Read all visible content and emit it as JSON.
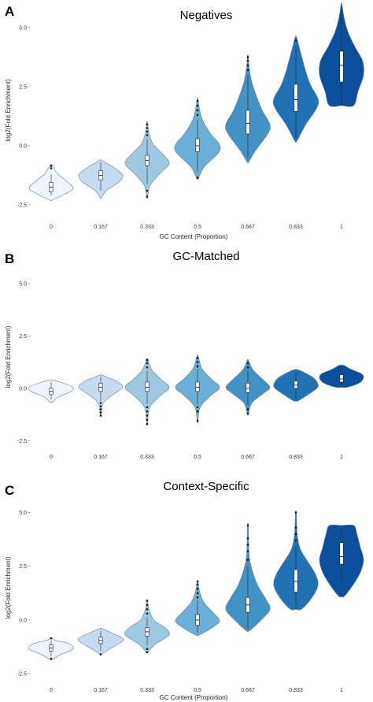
{
  "chart_data": [
    {
      "type": "violin",
      "panel_letter": "A",
      "title": "Negatives",
      "xlabel": "GC Content (Proportion)",
      "ylabel": "log2(Fold Enrichment)",
      "ylim": [
        -2.9,
        5.9
      ],
      "yticks": [
        "-2.5",
        "0.0",
        "2.5",
        "5.0"
      ],
      "ytick_values": [
        -2.5,
        0,
        2.5,
        5
      ],
      "categories": [
        "0",
        "0.167",
        "0.333",
        "0.5",
        "0.667",
        "0.833",
        "1"
      ],
      "colors": [
        "#eef4fc",
        "#c6dbef",
        "#9ecae1",
        "#6baed6",
        "#4292c6",
        "#2171b5",
        "#0b4f9c"
      ],
      "violins": [
        {
          "min": -2.3,
          "max": -0.8,
          "q1": -1.95,
          "median": -1.75,
          "q3": -1.55,
          "wmin": -2.1,
          "wmax": -1.2,
          "outliers": [
            -0.85,
            -0.95
          ],
          "profile": [
            [
              -2.3,
              0.05
            ],
            [
              -2.05,
              0.6
            ],
            [
              -1.8,
              1.0
            ],
            [
              -1.5,
              0.7
            ],
            [
              -1.2,
              0.3
            ],
            [
              -0.9,
              0.1
            ],
            [
              -0.8,
              0.03
            ]
          ]
        },
        {
          "min": -2.2,
          "max": -0.6,
          "q1": -1.45,
          "median": -1.25,
          "q3": -1.05,
          "wmin": -1.9,
          "wmax": -0.7,
          "outliers": [],
          "profile": [
            [
              -2.2,
              0.03
            ],
            [
              -1.9,
              0.25
            ],
            [
              -1.55,
              0.8
            ],
            [
              -1.25,
              1.0
            ],
            [
              -0.95,
              0.65
            ],
            [
              -0.7,
              0.2
            ],
            [
              -0.6,
              0.03
            ]
          ]
        },
        {
          "min": -2.2,
          "max": 1.0,
          "q1": -0.85,
          "median": -0.62,
          "q3": -0.4,
          "wmin": -1.6,
          "wmax": 0.3,
          "outliers": [
            0.45,
            0.6,
            0.75,
            0.9,
            -1.9,
            -2.15
          ],
          "profile": [
            [
              -2.2,
              0.02
            ],
            [
              -1.7,
              0.12
            ],
            [
              -1.2,
              0.55
            ],
            [
              -0.75,
              1.0
            ],
            [
              -0.35,
              0.7
            ],
            [
              0.1,
              0.25
            ],
            [
              0.6,
              0.07
            ],
            [
              1.0,
              0.02
            ]
          ]
        },
        {
          "min": -1.4,
          "max": 2.0,
          "q1": -0.25,
          "median": 0.0,
          "q3": 0.3,
          "wmin": -1.1,
          "wmax": 1.1,
          "outliers": [
            1.3,
            1.5,
            1.7,
            1.9,
            -1.35
          ],
          "profile": [
            [
              -1.4,
              0.03
            ],
            [
              -0.9,
              0.3
            ],
            [
              -0.3,
              0.95
            ],
            [
              0.05,
              1.0
            ],
            [
              0.5,
              0.6
            ],
            [
              1.1,
              0.22
            ],
            [
              1.6,
              0.08
            ],
            [
              2.0,
              0.02
            ]
          ]
        },
        {
          "min": -0.7,
          "max": 3.8,
          "q1": 0.5,
          "median": 0.95,
          "q3": 1.5,
          "wmin": -0.5,
          "wmax": 3.0,
          "outliers": [
            3.2,
            3.4,
            3.6,
            3.75
          ],
          "profile": [
            [
              -0.7,
              0.03
            ],
            [
              -0.2,
              0.35
            ],
            [
              0.5,
              0.9
            ],
            [
              0.9,
              1.0
            ],
            [
              1.5,
              0.65
            ],
            [
              2.2,
              0.35
            ],
            [
              2.8,
              0.15
            ],
            [
              3.4,
              0.05
            ],
            [
              3.8,
              0.02
            ]
          ]
        },
        {
          "min": 0.2,
          "max": 4.6,
          "q1": 1.45,
          "median": 1.95,
          "q3": 2.6,
          "wmin": 0.3,
          "wmax": 4.2,
          "outliers": [
            4.45
          ],
          "profile": [
            [
              0.2,
              0.05
            ],
            [
              0.9,
              0.45
            ],
            [
              1.6,
              0.95
            ],
            [
              2.0,
              1.0
            ],
            [
              2.6,
              0.65
            ],
            [
              3.3,
              0.4
            ],
            [
              4.0,
              0.2
            ],
            [
              4.6,
              0.03
            ]
          ]
        },
        {
          "min": 1.7,
          "max": 6.0,
          "q1": 2.7,
          "median": 3.4,
          "q3": 4.0,
          "wmin": 1.7,
          "wmax": 5.6,
          "outliers": [],
          "profile": [
            [
              1.7,
              0.55
            ],
            [
              2.3,
              0.75
            ],
            [
              3.0,
              1.0
            ],
            [
              3.6,
              0.95
            ],
            [
              4.2,
              0.6
            ],
            [
              4.8,
              0.3
            ],
            [
              5.4,
              0.12
            ],
            [
              6.0,
              0.02
            ]
          ]
        }
      ]
    },
    {
      "type": "violin",
      "panel_letter": "B",
      "title": "GC-Matched",
      "xlabel": "",
      "ylabel": "log2(Fold Enrichment)",
      "ylim": [
        -2.9,
        5.9
      ],
      "yticks": [
        "-2.5",
        "0.0",
        "2.5",
        "5.0"
      ],
      "ytick_values": [
        -2.5,
        0,
        2.5,
        5
      ],
      "categories": [
        "0",
        "0.167",
        "0.333",
        "0.5",
        "0.667",
        "0.833",
        "1"
      ],
      "colors": [
        "#eef4fc",
        "#c6dbef",
        "#9ecae1",
        "#6baed6",
        "#4292c6",
        "#2171b5",
        "#0b4f9c"
      ],
      "violins": [
        {
          "min": -0.65,
          "max": 0.4,
          "q1": -0.3,
          "median": -0.15,
          "q3": 0.0,
          "wmin": -0.55,
          "wmax": 0.3,
          "outliers": [],
          "profile": [
            [
              -0.65,
              0.05
            ],
            [
              -0.4,
              0.35
            ],
            [
              -0.15,
              0.9
            ],
            [
              0.05,
              1.0
            ],
            [
              0.25,
              0.55
            ],
            [
              0.4,
              0.05
            ]
          ]
        },
        {
          "min": -1.3,
          "max": 0.65,
          "q1": -0.15,
          "median": 0.05,
          "q3": 0.25,
          "wmin": -0.6,
          "wmax": 0.55,
          "outliers": [
            -0.7,
            -0.85,
            -1.0,
            -1.15,
            -1.3
          ],
          "profile": [
            [
              -1.3,
              0.02
            ],
            [
              -0.7,
              0.12
            ],
            [
              -0.3,
              0.55
            ],
            [
              0.05,
              1.0
            ],
            [
              0.35,
              0.7
            ],
            [
              0.55,
              0.25
            ],
            [
              0.65,
              0.03
            ]
          ]
        },
        {
          "min": -1.7,
          "max": 1.4,
          "q1": -0.15,
          "median": 0.05,
          "q3": 0.3,
          "wmin": -0.75,
          "wmax": 0.85,
          "outliers": [
            -0.9,
            -1.1,
            -1.3,
            -1.5,
            -1.7,
            1.0,
            1.2,
            1.35
          ],
          "profile": [
            [
              -1.7,
              0.02
            ],
            [
              -0.9,
              0.12
            ],
            [
              -0.35,
              0.6
            ],
            [
              0.05,
              1.0
            ],
            [
              0.45,
              0.6
            ],
            [
              0.9,
              0.2
            ],
            [
              1.4,
              0.03
            ]
          ]
        },
        {
          "min": -1.6,
          "max": 1.55,
          "q1": -0.15,
          "median": 0.05,
          "q3": 0.3,
          "wmin": -0.75,
          "wmax": 0.9,
          "outliers": [
            -0.9,
            -1.1,
            -1.55,
            1.05,
            1.25,
            1.45
          ],
          "profile": [
            [
              -1.6,
              0.02
            ],
            [
              -0.9,
              0.12
            ],
            [
              -0.35,
              0.6
            ],
            [
              0.05,
              1.0
            ],
            [
              0.45,
              0.62
            ],
            [
              0.95,
              0.2
            ],
            [
              1.55,
              0.03
            ]
          ]
        },
        {
          "min": -1.25,
          "max": 1.35,
          "q1": -0.2,
          "median": 0.0,
          "q3": 0.25,
          "wmin": -0.8,
          "wmax": 0.85,
          "outliers": [
            -1.0,
            -1.2,
            1.0,
            1.2
          ],
          "profile": [
            [
              -1.25,
              0.02
            ],
            [
              -0.7,
              0.18
            ],
            [
              -0.25,
              0.7
            ],
            [
              0.05,
              1.0
            ],
            [
              0.4,
              0.7
            ],
            [
              0.9,
              0.22
            ],
            [
              1.35,
              0.03
            ]
          ]
        },
        {
          "min": -0.6,
          "max": 0.9,
          "q1": 0.0,
          "median": 0.15,
          "q3": 0.35,
          "wmin": -0.5,
          "wmax": 0.8,
          "outliers": [],
          "profile": [
            [
              -0.6,
              0.1
            ],
            [
              -0.3,
              0.55
            ],
            [
              0.0,
              0.95
            ],
            [
              0.2,
              1.0
            ],
            [
              0.5,
              0.8
            ],
            [
              0.8,
              0.3
            ],
            [
              0.9,
              0.05
            ]
          ]
        },
        {
          "min": 0.05,
          "max": 1.1,
          "q1": 0.3,
          "median": 0.45,
          "q3": 0.65,
          "wmin": 0.1,
          "wmax": 1.0,
          "outliers": [],
          "profile": [
            [
              0.05,
              0.25
            ],
            [
              0.25,
              0.8
            ],
            [
              0.5,
              1.0
            ],
            [
              0.7,
              0.9
            ],
            [
              0.9,
              0.45
            ],
            [
              1.1,
              0.1
            ]
          ]
        }
      ]
    },
    {
      "type": "violin",
      "panel_letter": "C",
      "title": "Context-Specific",
      "xlabel": "GC Content (Proportion)",
      "ylabel": "log2(Fold Enrichment)",
      "ylim": [
        -2.9,
        5.9
      ],
      "yticks": [
        "-2.5",
        "0.0",
        "2.5",
        "5.0"
      ],
      "ytick_values": [
        -2.5,
        0,
        2.5,
        5
      ],
      "categories": [
        "0",
        "0.167",
        "0.333",
        "0.5",
        "0.667",
        "0.833",
        "1"
      ],
      "colors": [
        "#eef4fc",
        "#c6dbef",
        "#9ecae1",
        "#6baed6",
        "#4292c6",
        "#2171b5",
        "#0b4f9c"
      ],
      "violins": [
        {
          "min": -1.85,
          "max": -0.85,
          "q1": -1.45,
          "median": -1.3,
          "q3": -1.15,
          "wmin": -1.7,
          "wmax": -0.95,
          "outliers": [
            -0.85,
            -1.8
          ],
          "profile": [
            [
              -1.85,
              0.03
            ],
            [
              -1.6,
              0.45
            ],
            [
              -1.35,
              1.0
            ],
            [
              -1.1,
              0.8
            ],
            [
              -0.95,
              0.2
            ],
            [
              -0.85,
              0.03
            ]
          ]
        },
        {
          "min": -1.6,
          "max": -0.4,
          "q1": -1.1,
          "median": -0.95,
          "q3": -0.8,
          "wmin": -1.45,
          "wmax": -0.5,
          "outliers": [
            -1.6
          ],
          "profile": [
            [
              -1.6,
              0.03
            ],
            [
              -1.35,
              0.4
            ],
            [
              -1.05,
              0.9
            ],
            [
              -0.85,
              1.0
            ],
            [
              -0.6,
              0.5
            ],
            [
              -0.4,
              0.05
            ]
          ]
        },
        {
          "min": -1.5,
          "max": 0.9,
          "q1": -0.75,
          "median": -0.55,
          "q3": -0.35,
          "wmin": -1.2,
          "wmax": 0.1,
          "outliers": [
            0.3,
            0.5,
            0.7,
            0.9,
            -1.35,
            -1.5
          ],
          "profile": [
            [
              -1.5,
              0.03
            ],
            [
              -1.1,
              0.4
            ],
            [
              -0.7,
              1.0
            ],
            [
              -0.35,
              0.8
            ],
            [
              0.0,
              0.3
            ],
            [
              0.5,
              0.08
            ],
            [
              0.9,
              0.02
            ]
          ]
        },
        {
          "min": -0.7,
          "max": 1.8,
          "q1": -0.25,
          "median": 0.0,
          "q3": 0.25,
          "wmin": -0.6,
          "wmax": 0.9,
          "outliers": [
            1.05,
            1.25,
            1.45,
            1.65,
            1.8
          ],
          "profile": [
            [
              -0.7,
              0.08
            ],
            [
              -0.4,
              0.6
            ],
            [
              -0.05,
              1.0
            ],
            [
              0.3,
              0.75
            ],
            [
              0.8,
              0.3
            ],
            [
              1.3,
              0.1
            ],
            [
              1.8,
              0.02
            ]
          ]
        },
        {
          "min": -0.5,
          "max": 4.4,
          "q1": 0.35,
          "median": 0.7,
          "q3": 1.05,
          "wmin": -0.4,
          "wmax": 2.5,
          "outliers": [
            2.8,
            3.2,
            3.5,
            3.8,
            4.4
          ],
          "profile": [
            [
              -0.5,
              0.08
            ],
            [
              0.0,
              0.6
            ],
            [
              0.5,
              1.0
            ],
            [
              1.0,
              0.8
            ],
            [
              1.6,
              0.45
            ],
            [
              2.3,
              0.2
            ],
            [
              3.0,
              0.06
            ],
            [
              4.4,
              0.02
            ]
          ]
        },
        {
          "min": 0.5,
          "max": 5.0,
          "q1": 1.3,
          "median": 1.8,
          "q3": 2.35,
          "wmin": 0.5,
          "wmax": 3.4,
          "outliers": [
            3.7,
            4.0,
            4.3,
            5.0
          ],
          "profile": [
            [
              0.5,
              0.25
            ],
            [
              1.0,
              0.7
            ],
            [
              1.6,
              1.0
            ],
            [
              2.1,
              0.9
            ],
            [
              2.7,
              0.55
            ],
            [
              3.3,
              0.2
            ],
            [
              4.0,
              0.06
            ],
            [
              5.0,
              0.02
            ]
          ]
        },
        {
          "min": 1.1,
          "max": 4.4,
          "q1": 2.6,
          "median": 2.95,
          "q3": 3.6,
          "wmin": 1.9,
          "wmax": 4.3,
          "outliers": [],
          "profile": [
            [
              1.1,
              0.12
            ],
            [
              1.6,
              0.5
            ],
            [
              2.2,
              0.85
            ],
            [
              2.8,
              1.0
            ],
            [
              3.4,
              0.85
            ],
            [
              4.0,
              0.7
            ],
            [
              4.4,
              0.55
            ]
          ]
        }
      ]
    }
  ]
}
